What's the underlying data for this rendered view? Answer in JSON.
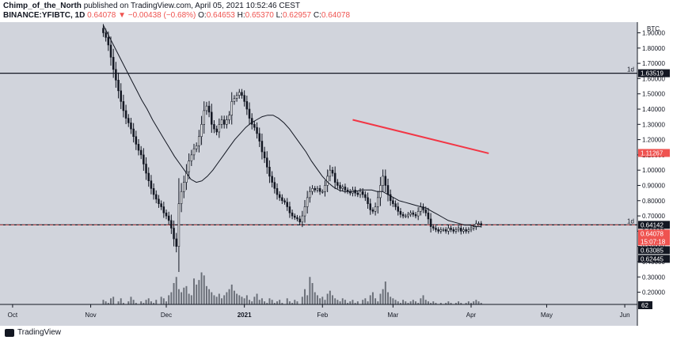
{
  "header": {
    "author": "Chimp_of_the_North",
    "published": "published on TradingView.com, April 05, 2021 10:52:46 CEST",
    "symbol": "BINANCE:YFIBTC, 1D",
    "ohlc": {
      "last": "0.64078",
      "change": "−0.00438 (−0.68%)",
      "open_label": "O:",
      "open": "0.64653",
      "high_label": "H:",
      "high": "0.65370",
      "low_label": "L:",
      "low": "0.62957",
      "close_label": "C:",
      "close": "0.64078"
    }
  },
  "footer": {
    "brand": "TradingView"
  },
  "colors": {
    "background": "#d1d4dc",
    "up": "#26a69a",
    "down": "#ef5350",
    "candle": "#131722",
    "price_tag": "#ef5350",
    "trend_line": "#f23645"
  },
  "chart_data": {
    "type": "candlestick",
    "title": "",
    "ylabel": "BTC",
    "ylim": [
      0.12,
      1.97
    ],
    "y_ticks": [
      "0.20000",
      "0.30000",
      "0.40000",
      "0.50000",
      "0.60000",
      "0.70000",
      "0.80000",
      "0.90000",
      "1.00000",
      "1.10000",
      "1.20000",
      "1.30000",
      "1.40000",
      "1.50000",
      "1.60000",
      "1.70000",
      "1.80000",
      "1.90000"
    ],
    "x_ticks": [
      "Oct",
      "Nov",
      "Dec",
      "2021",
      "Feb",
      "Mar",
      "Apr",
      "May",
      "Jun"
    ],
    "x_range": [
      "2020-09-26",
      "2021-06-06"
    ],
    "last_date": "2021-04-05",
    "price_labels": [
      {
        "value": 1.63519,
        "label": "1.63519",
        "style": "dark"
      },
      {
        "value": 1.11267,
        "label": "1.11267",
        "style": "red"
      },
      {
        "value": 0.64142,
        "label": "0.64142",
        "style": "dark"
      },
      {
        "value": 0.64078,
        "label": "0.64078",
        "sub": "15:07:18",
        "style": "red"
      },
      {
        "value": 0.63085,
        "label": "0.63085",
        "style": "dark"
      },
      {
        "value": 0.62445,
        "label": "0.62445",
        "style": "dark"
      }
    ],
    "horizontal_lines": [
      {
        "value": 1.63519,
        "style": "solid",
        "label": "1d"
      },
      {
        "value": 0.64142,
        "style": "solid",
        "label": "1d"
      },
      {
        "value": 0.64078,
        "style": "dashed"
      }
    ],
    "trend_line": {
      "start": [
        "2021-02-13",
        1.33
      ],
      "end": [
        "2021-04-08",
        1.11
      ]
    },
    "volume_label": "62",
    "closes": [
      1.9,
      1.87,
      1.82,
      1.74,
      1.66,
      1.59,
      1.52,
      1.45,
      1.39,
      1.34,
      1.31,
      1.27,
      1.22,
      1.17,
      1.13,
      1.1,
      1.04,
      0.98,
      0.93,
      0.88,
      0.84,
      0.81,
      0.78,
      0.76,
      0.72,
      0.7,
      0.67,
      0.62,
      0.55,
      0.5,
      0.78,
      0.86,
      0.92,
      0.99,
      1.06,
      1.1,
      1.14,
      1.16,
      1.22,
      1.3,
      1.39,
      1.42,
      1.38,
      1.3,
      1.27,
      1.25,
      1.3,
      1.33,
      1.3,
      1.33,
      1.36,
      1.45,
      1.47,
      1.49,
      1.51,
      1.49,
      1.45,
      1.4,
      1.34,
      1.3,
      1.28,
      1.24,
      1.19,
      1.12,
      1.08,
      1.02,
      0.96,
      0.92,
      0.88,
      0.84,
      0.82,
      0.8,
      0.79,
      0.76,
      0.72,
      0.7,
      0.69,
      0.68,
      0.66,
      0.7,
      0.76,
      0.82,
      0.86,
      0.88,
      0.87,
      0.88,
      0.86,
      0.86,
      0.9,
      0.96,
      1.0,
      0.98,
      0.92,
      0.9,
      0.88,
      0.89,
      0.87,
      0.86,
      0.85,
      0.87,
      0.85,
      0.84,
      0.86,
      0.84,
      0.82,
      0.78,
      0.74,
      0.73,
      0.76,
      0.82,
      0.9,
      0.96,
      0.9,
      0.84,
      0.8,
      0.78,
      0.76,
      0.73,
      0.71,
      0.7,
      0.7,
      0.71,
      0.72,
      0.71,
      0.7,
      0.73,
      0.76,
      0.74,
      0.72,
      0.68,
      0.63,
      0.62,
      0.61,
      0.6,
      0.61,
      0.61,
      0.6,
      0.62,
      0.61,
      0.6,
      0.61,
      0.62,
      0.6,
      0.61,
      0.6,
      0.61,
      0.62,
      0.63,
      0.65,
      0.65,
      0.64
    ],
    "ma": [
      1.95,
      1.88,
      1.81,
      1.74,
      1.67,
      1.6,
      1.53,
      1.46,
      1.4,
      1.33,
      1.27,
      1.21,
      1.15,
      1.09,
      1.04,
      0.99,
      0.94,
      0.92,
      0.93,
      0.96,
      1.0,
      1.05,
      1.1,
      1.15,
      1.2,
      1.24,
      1.28,
      1.31,
      1.33,
      1.35,
      1.36,
      1.36,
      1.34,
      1.31,
      1.27,
      1.22,
      1.17,
      1.12,
      1.06,
      1.01,
      0.96,
      0.92,
      0.89,
      0.87,
      0.86,
      0.86,
      0.86,
      0.87,
      0.87,
      0.87,
      0.86,
      0.86,
      0.84,
      0.82,
      0.8,
      0.79,
      0.78,
      0.77,
      0.76,
      0.75,
      0.73,
      0.71,
      0.69,
      0.67,
      0.66,
      0.65,
      0.64,
      0.64,
      0.63,
      0.63
    ],
    "volumes": [
      0.15,
      0.14,
      0.13,
      0.16,
      0.17,
      0.12,
      0.14,
      0.16,
      0.13,
      0.12,
      0.14,
      0.17,
      0.15,
      0.13,
      0.12,
      0.14,
      0.13,
      0.15,
      0.16,
      0.14,
      0.13,
      0.15,
      0.12,
      0.17,
      0.16,
      0.14,
      0.18,
      0.2,
      0.26,
      0.3,
      0.22,
      0.2,
      0.23,
      0.24,
      0.19,
      0.18,
      0.29,
      0.25,
      0.28,
      0.33,
      0.31,
      0.24,
      0.22,
      0.2,
      0.18,
      0.17,
      0.19,
      0.16,
      0.18,
      0.2,
      0.22,
      0.25,
      0.21,
      0.19,
      0.18,
      0.17,
      0.16,
      0.18,
      0.15,
      0.14,
      0.17,
      0.19,
      0.15,
      0.16,
      0.14,
      0.13,
      0.16,
      0.15,
      0.13,
      0.14,
      0.15,
      0.13,
      0.12,
      0.16,
      0.14,
      0.13,
      0.15,
      0.14,
      0.12,
      0.17,
      0.22,
      0.18,
      0.3,
      0.26,
      0.2,
      0.18,
      0.16,
      0.17,
      0.15,
      0.19,
      0.21,
      0.18,
      0.16,
      0.15,
      0.14,
      0.16,
      0.15,
      0.13,
      0.14,
      0.15,
      0.13,
      0.14,
      0.12,
      0.15,
      0.16,
      0.14,
      0.18,
      0.2,
      0.16,
      0.14,
      0.19,
      0.22,
      0.27,
      0.2,
      0.17,
      0.16,
      0.15,
      0.14,
      0.13,
      0.15,
      0.14,
      0.13,
      0.14,
      0.15,
      0.14,
      0.13,
      0.16,
      0.18,
      0.15,
      0.14,
      0.13,
      0.14,
      0.13,
      0.12,
      0.13,
      0.12,
      0.13,
      0.14,
      0.13,
      0.12,
      0.13,
      0.14,
      0.13,
      0.12,
      0.13,
      0.14,
      0.13,
      0.14,
      0.15,
      0.14,
      0.13
    ]
  }
}
